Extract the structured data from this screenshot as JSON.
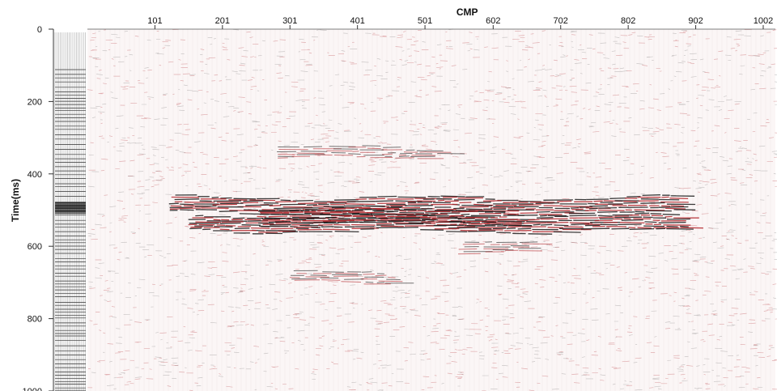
{
  "chart_data": {
    "type": "heatmap",
    "title": "",
    "xlabel": "CMP",
    "ylabel": "Time(ms)",
    "x_ticks": [
      101,
      201,
      301,
      401,
      501,
      602,
      702,
      802,
      902,
      1002
    ],
    "xlim": [
      1,
      1020
    ],
    "y_ticks": [
      0,
      200,
      400,
      600,
      800,
      1000
    ],
    "ylim": [
      0,
      1000
    ],
    "y_inverted": true,
    "x_axis_position": "top",
    "grid": false,
    "legend": "none",
    "reflectors": [
      {
        "cmp_start": 120,
        "cmp_end": 880,
        "time_ms": 490,
        "strength": "strong"
      },
      {
        "cmp_start": 150,
        "cmp_end": 880,
        "time_ms": 540,
        "strength": "strong"
      },
      {
        "cmp_start": 250,
        "cmp_end": 620,
        "time_ms": 520,
        "strength": "strong"
      },
      {
        "cmp_start": 280,
        "cmp_end": 520,
        "time_ms": 345,
        "strength": "medium"
      },
      {
        "cmp_start": 300,
        "cmp_end": 450,
        "time_ms": 690,
        "strength": "medium"
      },
      {
        "cmp_start": 550,
        "cmp_end": 650,
        "time_ms": 610,
        "strength": "medium"
      }
    ],
    "colors": {
      "positive": "#b3262b",
      "negative": "#1a1a1a",
      "background": "#fbf6f6"
    }
  }
}
